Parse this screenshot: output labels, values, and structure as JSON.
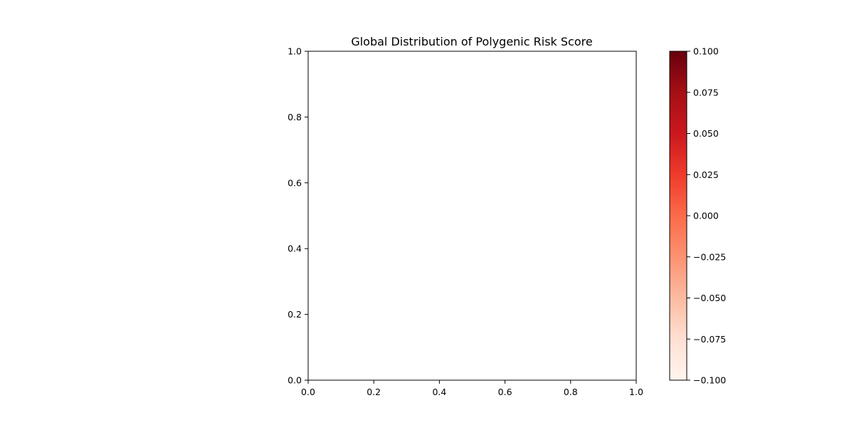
{
  "chart_data": {
    "type": "heatmap",
    "title": "Global Distribution of Polygenic Risk Score",
    "xlabel": "",
    "ylabel": "",
    "xlim": [
      0.0,
      1.0
    ],
    "ylim": [
      0.0,
      1.0
    ],
    "x_ticks": [
      "0.0",
      "0.2",
      "0.4",
      "0.6",
      "0.8",
      "1.0"
    ],
    "y_ticks": [
      "0.0",
      "0.2",
      "0.4",
      "0.6",
      "0.8",
      "1.0"
    ],
    "points": [],
    "grid": false,
    "colorbar": {
      "colormap": "Reds",
      "range": [
        -0.1,
        0.1
      ],
      "ticks": [
        "0.100",
        "0.075",
        "0.050",
        "0.025",
        "0.000",
        "−0.025",
        "−0.050",
        "−0.075",
        "−0.100"
      ],
      "colors": [
        "#fff5f0",
        "#fee0d2",
        "#fcbba1",
        "#fc9272",
        "#fb6a4a",
        "#ef3b2c",
        "#cb181d",
        "#a50f15",
        "#67000d"
      ]
    }
  }
}
